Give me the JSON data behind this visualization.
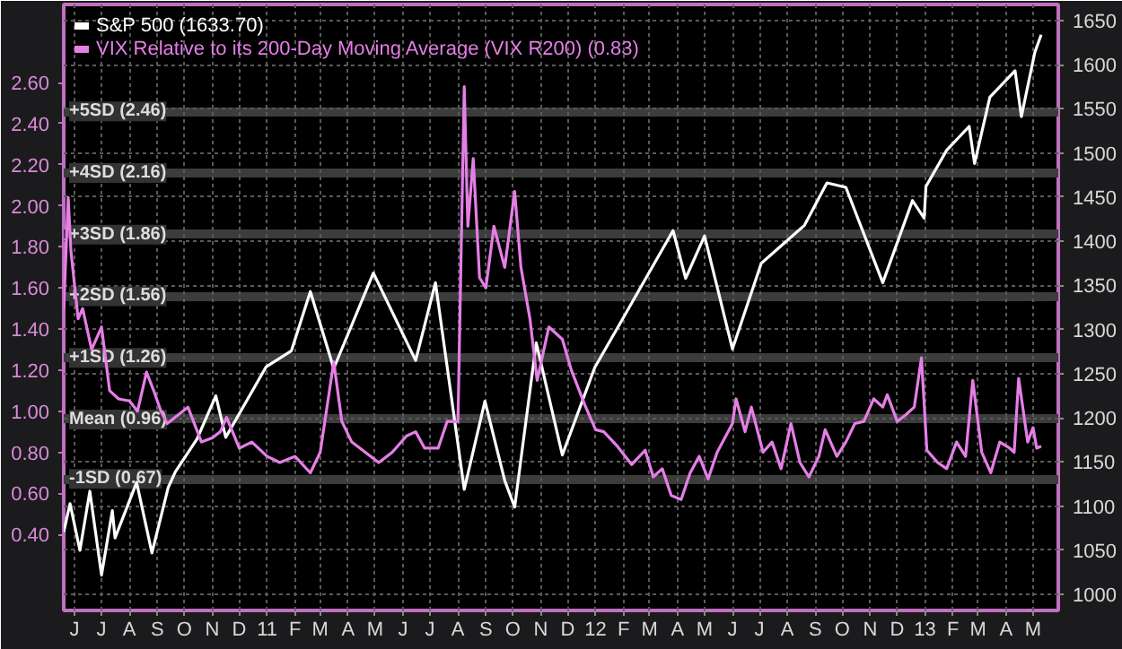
{
  "chart_data": {
    "type": "line",
    "legend": "top left",
    "grid": true,
    "xlim": [
      "2010-05-20",
      "2013-05-29"
    ],
    "xticks": [
      {
        "value": "2010-06-01",
        "label": "J"
      },
      {
        "value": "2010-07-01",
        "label": "J"
      },
      {
        "value": "2010-08-01",
        "label": "A"
      },
      {
        "value": "2010-09-01",
        "label": "S"
      },
      {
        "value": "2010-10-01",
        "label": "O"
      },
      {
        "value": "2010-11-01",
        "label": "N"
      },
      {
        "value": "2010-12-01",
        "label": "D"
      },
      {
        "value": "2011-01-01",
        "label": "11"
      },
      {
        "value": "2011-02-01",
        "label": "F"
      },
      {
        "value": "2011-03-01",
        "label": "M"
      },
      {
        "value": "2011-04-01",
        "label": "A"
      },
      {
        "value": "2011-05-01",
        "label": "M"
      },
      {
        "value": "2011-06-01",
        "label": "J"
      },
      {
        "value": "2011-07-01",
        "label": "J"
      },
      {
        "value": "2011-08-01",
        "label": "A"
      },
      {
        "value": "2011-09-01",
        "label": "S"
      },
      {
        "value": "2011-10-01",
        "label": "O"
      },
      {
        "value": "2011-11-01",
        "label": "N"
      },
      {
        "value": "2011-12-01",
        "label": "D"
      },
      {
        "value": "2012-01-01",
        "label": "12"
      },
      {
        "value": "2012-02-01",
        "label": "F"
      },
      {
        "value": "2012-03-01",
        "label": "M"
      },
      {
        "value": "2012-04-01",
        "label": "A"
      },
      {
        "value": "2012-05-01",
        "label": "M"
      },
      {
        "value": "2012-06-01",
        "label": "J"
      },
      {
        "value": "2012-07-01",
        "label": "J"
      },
      {
        "value": "2012-08-01",
        "label": "A"
      },
      {
        "value": "2012-09-01",
        "label": "S"
      },
      {
        "value": "2012-10-01",
        "label": "O"
      },
      {
        "value": "2012-11-01",
        "label": "N"
      },
      {
        "value": "2012-12-01",
        "label": "D"
      },
      {
        "value": "2013-01-01",
        "label": "13"
      },
      {
        "value": "2013-02-01",
        "label": "F"
      },
      {
        "value": "2013-03-01",
        "label": "M"
      },
      {
        "value": "2013-04-01",
        "label": "A"
      },
      {
        "value": "2013-05-01",
        "label": "M"
      }
    ],
    "ylim": [
      0.03,
      2.98
    ],
    "yticks": [
      {
        "value": 0.4,
        "label": "0.40"
      },
      {
        "value": 0.6,
        "label": "0.60"
      },
      {
        "value": 0.8,
        "label": "0.80"
      },
      {
        "value": 1.0,
        "label": "1.00"
      },
      {
        "value": 1.2,
        "label": "1.20"
      },
      {
        "value": 1.4,
        "label": "1.40"
      },
      {
        "value": 1.6,
        "label": "1.60"
      },
      {
        "value": 1.8,
        "label": "1.80"
      },
      {
        "value": 2.0,
        "label": "2.00"
      },
      {
        "value": 2.2,
        "label": "2.20"
      },
      {
        "value": 2.4,
        "label": "2.40"
      },
      {
        "value": 2.6,
        "label": "2.60"
      }
    ],
    "y2lim": [
      982,
      1668
    ],
    "y2ticks": [
      1000,
      1050,
      1100,
      1150,
      1200,
      1250,
      1300,
      1350,
      1400,
      1450,
      1500,
      1550,
      1600,
      1650
    ],
    "ref_lines": [
      {
        "axis": "y",
        "value": 2.46,
        "label": "+5SD (2.46)",
        "color": "#3c3c3c"
      },
      {
        "axis": "y",
        "value": 2.16,
        "label": "+4SD (2.16)",
        "color": "#3c3c3c"
      },
      {
        "axis": "y",
        "value": 1.86,
        "label": "+3SD (1.86)",
        "color": "#3c3c3c"
      },
      {
        "axis": "y",
        "value": 1.56,
        "label": "+2SD (1.56)",
        "color": "#3c3c3c"
      },
      {
        "axis": "y",
        "value": 1.26,
        "label": "+1SD (1.26)",
        "color": "#3c3c3c"
      },
      {
        "axis": "y",
        "value": 0.96,
        "label": "Mean (0.96)",
        "color": "#3c3c3c"
      },
      {
        "axis": "y",
        "value": 0.67,
        "label": "-1SD (0.67)",
        "color": "#3c3c3c"
      }
    ],
    "series": [
      {
        "name": "S&P 500 (1633.70)",
        "color": "#ffffff",
        "axis": "y2",
        "x": [
          "2010-05-20",
          "2010-05-27",
          "2010-06-07",
          "2010-06-18",
          "2010-07-01",
          "2010-07-13",
          "2010-07-16",
          "2010-08-09",
          "2010-08-26",
          "2010-09-13",
          "2010-09-21",
          "2010-10-15",
          "2010-11-05",
          "2010-11-16",
          "2010-12-31",
          "2011-01-28",
          "2011-02-18",
          "2011-03-16",
          "2011-04-29",
          "2011-06-15",
          "2011-07-07",
          "2011-08-08",
          "2011-08-31",
          "2011-09-22",
          "2011-10-03",
          "2011-10-27",
          "2011-11-25",
          "2011-12-31",
          "2012-01-31",
          "2012-03-27",
          "2012-04-10",
          "2012-05-01",
          "2012-06-01",
          "2012-07-03",
          "2012-08-20",
          "2012-09-14",
          "2012-10-05",
          "2012-11-15",
          "2012-12-18",
          "2012-12-31",
          "2013-01-02",
          "2013-01-25",
          "2013-02-19",
          "2013-02-25",
          "2013-03-14",
          "2013-04-11",
          "2013-04-18",
          "2013-05-03",
          "2013-05-10"
        ],
        "values": [
          1071,
          1103,
          1050,
          1117,
          1022,
          1095,
          1064,
          1127,
          1047,
          1121,
          1139,
          1176,
          1225,
          1178,
          1258,
          1276,
          1343,
          1256,
          1364,
          1265,
          1353,
          1119,
          1219,
          1129,
          1099,
          1285,
          1158,
          1257,
          1312,
          1412,
          1358,
          1406,
          1278,
          1375,
          1418,
          1466,
          1461,
          1353,
          1446,
          1426,
          1462,
          1503,
          1530,
          1488,
          1563,
          1593,
          1541,
          1614,
          1633.7
        ]
      },
      {
        "name": "VIX Relative to its 200-Day Moving Average (VIX R200) (0.83)",
        "color": "#e67ee6",
        "x": [
          "2010-05-20",
          "2010-05-25",
          "2010-05-28",
          "2010-06-05",
          "2010-06-10",
          "2010-06-20",
          "2010-07-01",
          "2010-07-10",
          "2010-07-20",
          "2010-08-01",
          "2010-08-10",
          "2010-08-20",
          "2010-08-28",
          "2010-09-05",
          "2010-09-12",
          "2010-10-05",
          "2010-10-20",
          "2010-11-01",
          "2010-11-10",
          "2010-11-17",
          "2010-12-01",
          "2010-12-15",
          "2011-01-01",
          "2011-01-15",
          "2011-02-01",
          "2011-02-18",
          "2011-03-01",
          "2011-03-16",
          "2011-03-25",
          "2011-04-05",
          "2011-04-20",
          "2011-05-05",
          "2011-05-20",
          "2011-06-05",
          "2011-06-15",
          "2011-06-25",
          "2011-07-10",
          "2011-07-20",
          "2011-08-01",
          "2011-08-08",
          "2011-08-12",
          "2011-08-18",
          "2011-08-25",
          "2011-09-01",
          "2011-09-10",
          "2011-09-22",
          "2011-10-03",
          "2011-10-10",
          "2011-10-20",
          "2011-10-28",
          "2011-11-10",
          "2011-11-25",
          "2011-12-05",
          "2011-12-20",
          "2012-01-01",
          "2012-01-10",
          "2012-01-25",
          "2012-02-10",
          "2012-02-25",
          "2012-03-05",
          "2012-03-15",
          "2012-03-25",
          "2012-04-05",
          "2012-04-15",
          "2012-04-25",
          "2012-05-05",
          "2012-05-15",
          "2012-06-01",
          "2012-06-05",
          "2012-06-15",
          "2012-06-22",
          "2012-07-05",
          "2012-07-15",
          "2012-07-25",
          "2012-08-05",
          "2012-08-15",
          "2012-08-25",
          "2012-09-05",
          "2012-09-12",
          "2012-09-25",
          "2012-10-05",
          "2012-10-15",
          "2012-10-25",
          "2012-11-05",
          "2012-11-15",
          "2012-11-20",
          "2012-12-01",
          "2012-12-10",
          "2012-12-20",
          "2012-12-28",
          "2013-01-03",
          "2013-01-15",
          "2013-01-25",
          "2013-02-05",
          "2013-02-15",
          "2013-02-23",
          "2013-03-05",
          "2013-03-15",
          "2013-03-25",
          "2013-04-05",
          "2013-04-10",
          "2013-04-15",
          "2013-04-25",
          "2013-05-01",
          "2013-05-05",
          "2013-05-10"
        ],
        "values": [
          1.5,
          2.04,
          1.78,
          1.45,
          1.5,
          1.3,
          1.41,
          1.1,
          1.06,
          1.05,
          1.0,
          1.19,
          1.1,
          1.0,
          0.94,
          1.02,
          0.85,
          0.87,
          0.9,
          0.97,
          0.82,
          0.85,
          0.78,
          0.75,
          0.78,
          0.7,
          0.8,
          1.24,
          0.95,
          0.85,
          0.8,
          0.75,
          0.8,
          0.88,
          0.9,
          0.82,
          0.82,
          0.95,
          0.95,
          2.58,
          1.9,
          2.23,
          1.65,
          1.6,
          1.9,
          1.7,
          2.07,
          1.7,
          1.45,
          1.15,
          1.41,
          1.35,
          1.2,
          1.03,
          0.91,
          0.9,
          0.83,
          0.74,
          0.81,
          0.68,
          0.72,
          0.59,
          0.57,
          0.7,
          0.78,
          0.67,
          0.8,
          0.94,
          1.06,
          0.9,
          1.02,
          0.8,
          0.85,
          0.72,
          0.94,
          0.75,
          0.68,
          0.78,
          0.91,
          0.78,
          0.85,
          0.94,
          0.95,
          1.06,
          1.02,
          1.08,
          0.95,
          0.98,
          1.02,
          1.26,
          0.81,
          0.75,
          0.72,
          0.85,
          0.78,
          1.15,
          0.8,
          0.7,
          0.85,
          0.82,
          0.8,
          1.16,
          0.85,
          0.92,
          0.82,
          0.83
        ]
      }
    ]
  }
}
